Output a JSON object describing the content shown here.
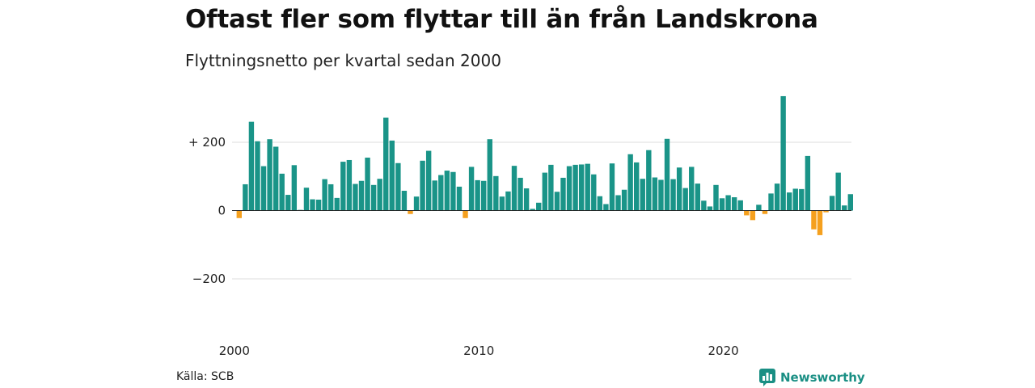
{
  "header": {
    "title": "Oftast fler som flyttar till än från Landskrona",
    "subtitle": "Flyttningsnetto per kvartal sedan 2000"
  },
  "footer": {
    "source": "Källa: SCB",
    "brand": "Newsworthy"
  },
  "colors": {
    "positive": "#1a9488",
    "negative": "#f5a01e",
    "grid": "#dddddd",
    "zero_line": "#222222",
    "brand": "#1a8f84"
  },
  "icons": {
    "brand": "bar-chart-bubble-icon"
  },
  "chart_data": {
    "type": "bar",
    "title": "Oftast fler som flyttar till än från Landskrona",
    "subtitle": "Flyttningsnetto per kvartal sedan 2000",
    "xlabel": "",
    "ylabel": "",
    "x_start": "2000-Q1",
    "x_ticks": [
      "2000",
      "2010",
      "2020"
    ],
    "y_ticks": [
      {
        "value": 200,
        "label": "+ 200"
      },
      {
        "value": 0,
        "label": "0"
      },
      {
        "value": -200,
        "label": "−200"
      }
    ],
    "ylim": [
      -300,
      330
    ],
    "grid": true,
    "legend": "none",
    "values": [
      -22,
      77,
      260,
      203,
      130,
      209,
      187,
      108,
      46,
      133,
      2,
      67,
      33,
      32,
      92,
      77,
      37,
      143,
      148,
      78,
      87,
      155,
      75,
      93,
      272,
      205,
      139,
      58,
      -10,
      41,
      146,
      175,
      88,
      104,
      117,
      113,
      70,
      -22,
      128,
      89,
      87,
      209,
      101,
      41,
      56,
      131,
      96,
      65,
      5,
      23,
      111,
      134,
      55,
      96,
      130,
      134,
      135,
      137,
      106,
      42,
      19,
      138,
      45,
      61,
      165,
      141,
      93,
      177,
      97,
      90,
      210,
      92,
      126,
      66,
      128,
      79,
      29,
      12,
      75,
      36,
      45,
      39,
      30,
      -14,
      -28,
      17,
      -10,
      50,
      79,
      335,
      53,
      64,
      63,
      160,
      -55,
      -72,
      -5,
      43,
      111,
      15,
      48
    ]
  }
}
